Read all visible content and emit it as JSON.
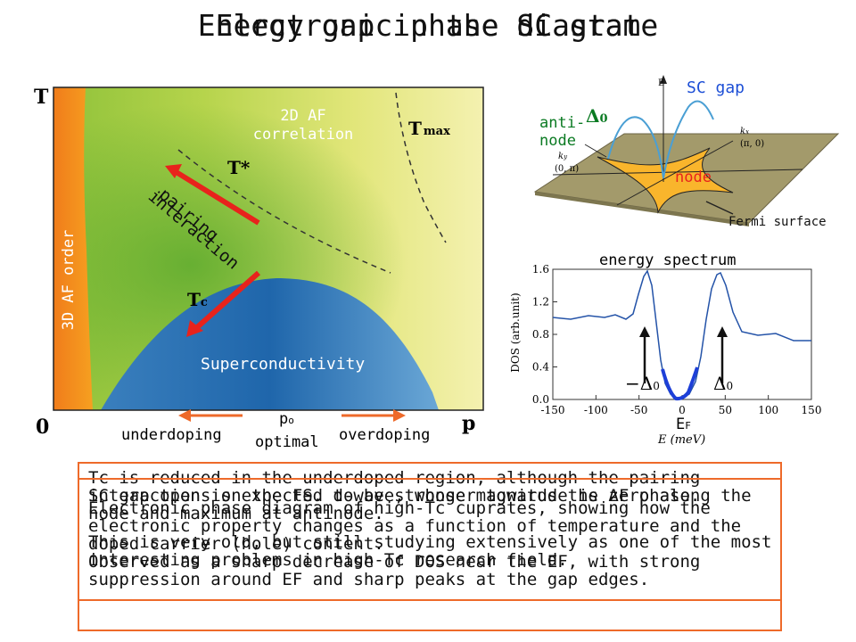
{
  "titles": [
    "Electronic phase diagram",
    "Energy gap in the SC state"
  ],
  "phase_diagram": {
    "t_axis": "T",
    "origin": "0",
    "p_axis": "p",
    "region_3d_af": "3D AF order",
    "region_2d_af_line1": "2D AF",
    "region_2d_af_line2": "correlation",
    "tmax": "T",
    "tmax_sub": "max",
    "tstar": "T*",
    "tc": "T",
    "tc_sub": "c",
    "pairing_line1": "pairing",
    "pairing_line2": "interaction",
    "sc_region": "Superconductivity",
    "underdoping": "underdoping",
    "overdoping": "overdoping",
    "p0": "p",
    "p0_sub": "o",
    "optimal": "optimal"
  },
  "gap_diagram": {
    "sc_gap": "SC gap",
    "delta0": "Δ",
    "delta0_sub": "0",
    "antinode_line1": "anti-",
    "antinode_line2": "node",
    "node": "node",
    "fermi_surface": "Fermi surface",
    "axis_e": "E",
    "axis_kx": "k",
    "axis_kx_sub": "x",
    "axis_ky": "k",
    "axis_ky_sub": "y",
    "pt_pi0": "(π, 0)",
    "pt_0pi": "(0, π)"
  },
  "energy_spectrum": {
    "label": "energy spectrum",
    "ylabel": "DOS (arb.unit)",
    "xlabel": "E (meV)",
    "yticks": [
      "0.0",
      "0.4",
      "0.8",
      "1.2",
      "1.6"
    ],
    "xticks": [
      "-150",
      "-100",
      "-50",
      "0",
      "50",
      "100",
      "150"
    ],
    "neg_delta": "−Δ",
    "pos_delta": "Δ",
    "delta_sub": "0",
    "ef": "E",
    "ef_sub": "F"
  },
  "captions": [
    "Tc is reduced in the underdoped region, although the pairing interaction is expected to be stronger towards the AF phase.",
    "SC gap opens on the FS. d-wave, whose magnitude is zero along the node and maximum at antinode.",
    "Electronic phase diagram of high-Tc cuprates, showing how the electronic property changes as a function of temperature and the doped carrier (hole) content.",
    "This is very old, but still studying extensively as one of the most interesting problems in high-Tc research field.",
    "Observed as a sharp decrease of DOS near the EF, with strong suppression around EF and sharp peaks at the gap edges."
  ],
  "colors": {
    "accent_border": "#ee6a2a",
    "sc_blue": "#2f72b5",
    "arrow_red": "#e8231c",
    "gap_blue": "#1d4fd6",
    "fs_orange": "#f9b52c"
  }
}
